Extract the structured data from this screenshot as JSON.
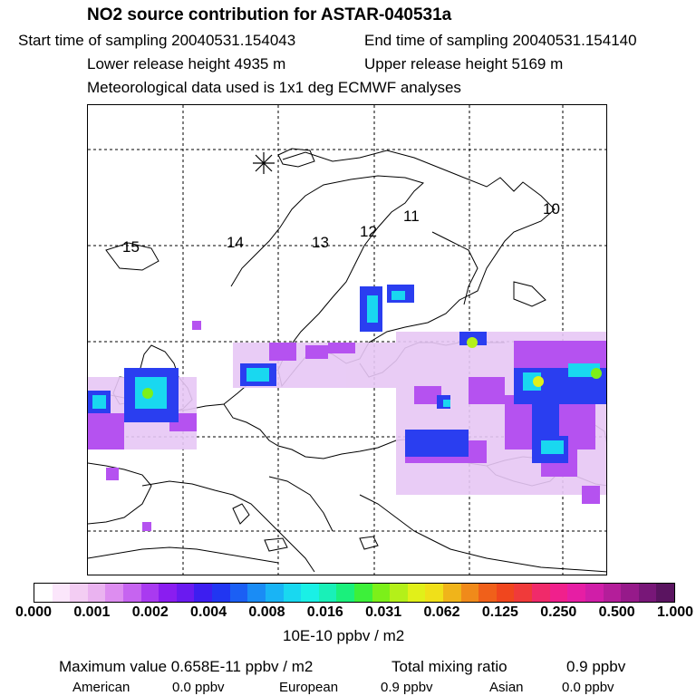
{
  "header": {
    "title": "NO2 source contribution for ASTAR-040531a",
    "start_label": "Start time of sampling 20040531.154043",
    "end_label": "End time of sampling 20040531.154140",
    "lower_label": "Lower release height 4935 m",
    "upper_label": "Upper release height 5169 m",
    "met_label": "Meteorological data used is 1x1 deg ECMWF analyses"
  },
  "map": {
    "trajectory_labels": [
      "15",
      "14",
      "13",
      "12",
      "11",
      "10"
    ],
    "release_marker": "star"
  },
  "colorbar": {
    "tick_labels": [
      "0.000",
      "0.001",
      "0.002",
      "0.004",
      "0.008",
      "0.016",
      "0.031",
      "0.062",
      "0.125",
      "0.250",
      "0.500",
      "1.000"
    ],
    "unit_label": "10E-10 ppbv / m2",
    "colors": [
      "#ffffff",
      "#fbe6fb",
      "#f3cdf3",
      "#eab3f0",
      "#dd8df0",
      "#c664f0",
      "#a93af0",
      "#8a1df0",
      "#6a1af0",
      "#3d1ef0",
      "#2136f2",
      "#1b5ff4",
      "#1a8cf5",
      "#19b4f5",
      "#19d8f0",
      "#1af0e6",
      "#19f0b8",
      "#1af07c",
      "#3df03a",
      "#7cf019",
      "#b4f019",
      "#e1f019",
      "#f0e019",
      "#f0b41a",
      "#f08a1a",
      "#f0601a",
      "#f0461e",
      "#f03a3a",
      "#f02a6a",
      "#f0208c",
      "#e61ea4",
      "#d01ea8",
      "#b41e9a",
      "#961a8a",
      "#781778",
      "#5a1460"
    ]
  },
  "footer": {
    "max_label": "Maximum value  0.658E-11 ppbv / m2",
    "total_label": "Total mixing ratio",
    "total_value": "0.9 ppbv",
    "american_label": "American",
    "american_value": "0.0 ppbv",
    "european_label": "European",
    "european_value": "0.9 ppbv",
    "asian_label": "Asian",
    "asian_value": "0.0 ppbv"
  }
}
